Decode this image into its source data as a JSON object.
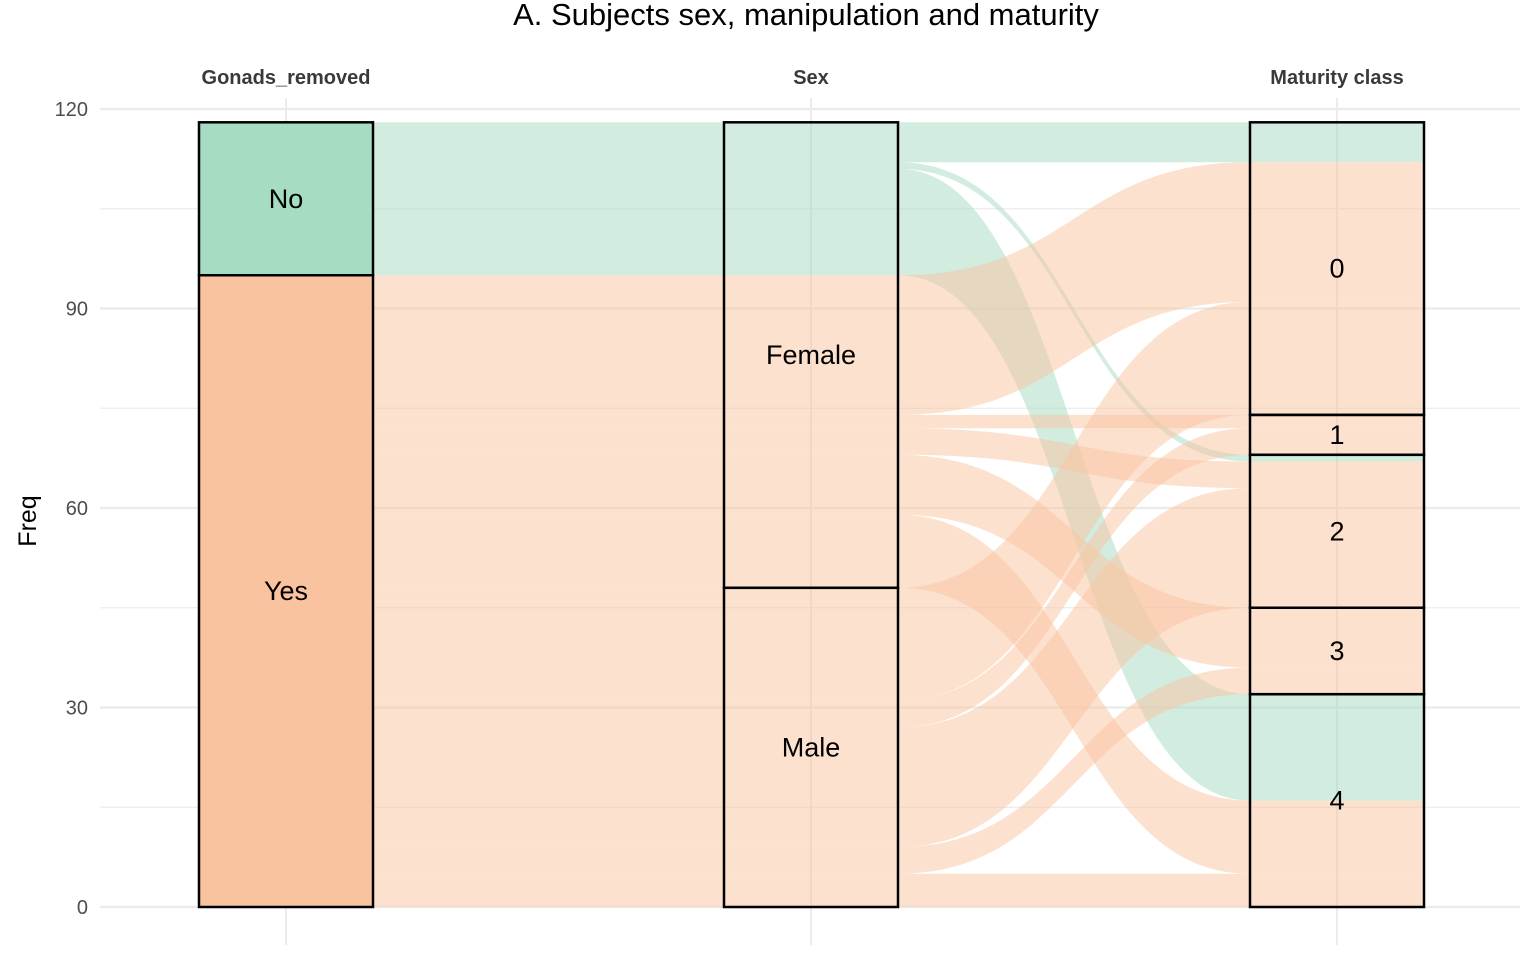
{
  "chart_data": {
    "type": "alluvial",
    "title": "A. Subjects sex, manipulation and maturity",
    "ylabel": "Freq",
    "ylim": [
      0,
      120
    ],
    "yticks": [
      0,
      30,
      60,
      90,
      120
    ],
    "grid": true,
    "axes": [
      "Gonads_removed",
      "Sex",
      "Maturity class"
    ],
    "fill_by": "Gonads_removed",
    "colors": {
      "No": "#a5dcc2",
      "Yes": "#fac3a0"
    },
    "flows": [
      {
        "gonads": "No",
        "sex": "Female",
        "maturity": "0",
        "freq": 6
      },
      {
        "gonads": "No",
        "sex": "Female",
        "maturity": "2",
        "freq": 1
      },
      {
        "gonads": "No",
        "sex": "Female",
        "maturity": "4",
        "freq": 16
      },
      {
        "gonads": "Yes",
        "sex": "Female",
        "maturity": "0",
        "freq": 21
      },
      {
        "gonads": "Yes",
        "sex": "Female",
        "maturity": "1",
        "freq": 2
      },
      {
        "gonads": "Yes",
        "sex": "Female",
        "maturity": "2",
        "freq": 4
      },
      {
        "gonads": "Yes",
        "sex": "Female",
        "maturity": "3",
        "freq": 9
      },
      {
        "gonads": "Yes",
        "sex": "Female",
        "maturity": "4",
        "freq": 11
      },
      {
        "gonads": "Yes",
        "sex": "Male",
        "maturity": "0",
        "freq": 17
      },
      {
        "gonads": "Yes",
        "sex": "Male",
        "maturity": "1",
        "freq": 4
      },
      {
        "gonads": "Yes",
        "sex": "Male",
        "maturity": "2",
        "freq": 18
      },
      {
        "gonads": "Yes",
        "sex": "Male",
        "maturity": "3",
        "freq": 4
      },
      {
        "gonads": "Yes",
        "sex": "Male",
        "maturity": "4",
        "freq": 5
      }
    ]
  }
}
